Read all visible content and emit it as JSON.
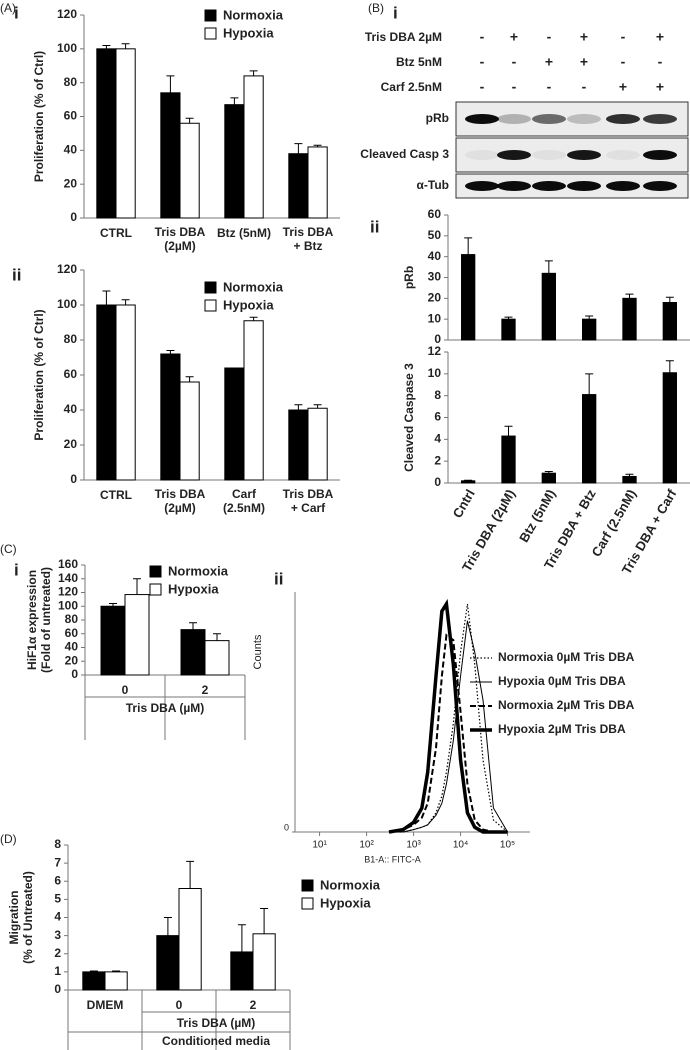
{
  "chart_data": [
    {
      "type": "bar",
      "panel": "(A)",
      "subpanel": "i",
      "ylabel": "Proliferation (% of Ctrl)",
      "categories": [
        "CTRL",
        "Tris DBA\n(2µM)",
        "Btz (5nM)",
        "Tris DBA\n+ Btz"
      ],
      "series": [
        {
          "name": "Normoxia",
          "color": "#000000",
          "values": [
            100,
            74,
            67,
            38
          ],
          "errors": [
            2,
            10,
            4,
            6
          ]
        },
        {
          "name": "Hypoxia",
          "color": "#ffffff",
          "values": [
            100,
            56,
            84,
            42
          ],
          "errors": [
            3,
            3,
            3,
            1
          ]
        }
      ],
      "ylim": [
        0,
        120
      ],
      "yticks": [
        0,
        20,
        40,
        60,
        80,
        100,
        120
      ]
    },
    {
      "type": "bar",
      "subpanel": "ii",
      "ylabel": "Proliferation (% of Ctrl)",
      "categories": [
        "CTRL",
        "Tris DBA\n(2µM)",
        "Carf\n(2.5nM)",
        "Tris DBA\n+ Carf"
      ],
      "series": [
        {
          "name": "Normoxia",
          "color": "#000000",
          "values": [
            100,
            72,
            64,
            40
          ],
          "errors": [
            8,
            2,
            0,
            3
          ]
        },
        {
          "name": "Hypoxia",
          "color": "#ffffff",
          "values": [
            100,
            56,
            91,
            41
          ],
          "errors": [
            3,
            3,
            2,
            2
          ]
        }
      ],
      "ylim": [
        0,
        120
      ],
      "yticks": [
        0,
        20,
        40,
        60,
        80,
        100,
        120
      ]
    },
    {
      "type": "blot",
      "panel": "(B)",
      "subpanel": "i",
      "treatments": [
        {
          "label": "Tris DBA 2µM",
          "signs": [
            "-",
            "+",
            "-",
            "+",
            "-",
            "+"
          ]
        },
        {
          "label": "Btz 5nM",
          "signs": [
            "-",
            "-",
            "+",
            "+",
            "-",
            "-"
          ]
        },
        {
          "label": "Carf 2.5nM",
          "signs": [
            "-",
            "-",
            "-",
            "-",
            "+",
            "+"
          ]
        }
      ],
      "bands": [
        "pRb",
        "Cleaved Casp 3",
        "α-Tub"
      ]
    },
    {
      "type": "bar",
      "subpanel": "ii",
      "ylabel": "pRb",
      "series": [
        {
          "color": "#000000",
          "values": [
            41,
            10,
            32,
            10,
            20,
            18
          ],
          "errors": [
            8,
            1,
            6,
            1.5,
            2,
            2.5
          ]
        }
      ],
      "ylim": [
        0,
        60
      ],
      "yticks": [
        0,
        10,
        20,
        30,
        40,
        50,
        60
      ]
    },
    {
      "type": "bar",
      "ylabel": "Cleaved Caspase 3",
      "categories": [
        "Cntrl",
        "Tris DBA (2µM)",
        "Btz (5nM)",
        "Tris DBA + Btz",
        "Carf (2.5nM)",
        "Tris DBA + Carf"
      ],
      "series": [
        {
          "color": "#000000",
          "values": [
            0.2,
            4.3,
            0.9,
            8.1,
            0.6,
            10.1
          ],
          "errors": [
            0.05,
            0.9,
            0.15,
            1.9,
            0.2,
            1.1
          ]
        }
      ],
      "ylim": [
        0,
        12
      ],
      "yticks": [
        0,
        2,
        4,
        6,
        8,
        10,
        12
      ]
    },
    {
      "type": "bar",
      "panel": "(C)",
      "subpanel": "i",
      "ylabel": "HiF1α expression\n(Fold of untreated)",
      "categories": [
        "0",
        "2"
      ],
      "xlabel": "Tris DBA (µM)",
      "series": [
        {
          "name": "Normoxia",
          "color": "#000000",
          "values": [
            100,
            66
          ],
          "errors": [
            4,
            10
          ]
        },
        {
          "name": "Hypoxia",
          "color": "#ffffff",
          "values": [
            117,
            50
          ],
          "errors": [
            23,
            10
          ]
        }
      ],
      "ylim": [
        0,
        160
      ],
      "yticks": [
        0,
        20,
        40,
        60,
        80,
        100,
        120,
        140,
        160
      ]
    },
    {
      "type": "line",
      "subpanel": "ii",
      "ylabel": "Counts",
      "xlabel": "B1-A:: FITC-A",
      "xscale": "log",
      "x": [
        300,
        600,
        1000,
        1500,
        2000,
        3000,
        4000,
        5000,
        7000,
        10000,
        14000,
        20000,
        30000,
        50000,
        100000
      ],
      "xlim": [
        3,
        300000
      ],
      "xticks": [
        {
          "value": 10,
          "label": "10¹"
        },
        {
          "value": 100,
          "label": "10²"
        },
        {
          "value": 1000,
          "label": "10³"
        },
        {
          "value": 10000,
          "label": "10⁴"
        },
        {
          "value": 100000,
          "label": "10⁵"
        }
      ],
      "ylim": [
        0,
        100
      ],
      "yticks": [
        0
      ],
      "series": [
        {
          "name": "Normoxia 0µM Tris DBA",
          "color": "#000000",
          "dash": "dotted",
          "width": 1.2,
          "values": [
            0,
            0,
            1,
            2,
            3,
            8,
            15,
            25,
            45,
            75,
            95,
            70,
            30,
            5,
            0
          ]
        },
        {
          "name": "Hypoxia 0µM Tris DBA",
          "color": "#000000",
          "dash": "solid",
          "width": 1,
          "values": [
            0,
            0,
            1,
            2,
            3,
            7,
            12,
            20,
            38,
            65,
            88,
            75,
            55,
            10,
            0
          ]
        },
        {
          "name": "Normoxia 2µM Tris DBA",
          "color": "#000000",
          "dash": "dashed",
          "width": 2,
          "values": [
            0,
            1,
            3,
            6,
            12,
            35,
            65,
            82,
            80,
            50,
            20,
            5,
            1,
            0,
            0
          ]
        },
        {
          "name": "Hypoxia 2µM Tris DBA",
          "color": "#000000",
          "dash": "solid",
          "width": 3.5,
          "values": [
            0,
            1,
            4,
            10,
            25,
            65,
            92,
            95,
            70,
            30,
            8,
            2,
            0,
            0,
            0
          ]
        }
      ]
    },
    {
      "type": "bar",
      "panel": "(D)",
      "ylabel": "Migration\n(% of Untreated)",
      "categories": [
        "DMEM",
        "0",
        "2"
      ],
      "xlabel": "Tris DBA (µM)",
      "group_label": "Conditioned media",
      "series": [
        {
          "name": "Normoxia",
          "color": "#000000",
          "values": [
            1,
            3,
            2.1
          ],
          "errors": [
            0.05,
            1,
            1.5
          ]
        },
        {
          "name": "Hypoxia",
          "color": "#ffffff",
          "values": [
            1,
            5.6,
            3.1
          ],
          "errors": [
            0.05,
            1.5,
            1.4
          ]
        }
      ],
      "ylim": [
        0,
        8
      ],
      "yticks": [
        0,
        1,
        2,
        3,
        4,
        5,
        6,
        7,
        8
      ]
    }
  ]
}
